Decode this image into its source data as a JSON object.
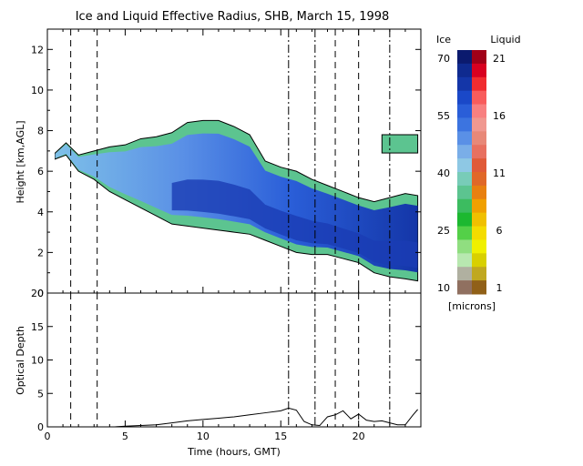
{
  "chart_data": [
    {
      "type": "heatmap",
      "title": "Ice and Liquid Effective Radius, SHB, March 15, 1998",
      "xlabel": "",
      "ylabel": "Height [km,AGL]",
      "xlim": [
        0,
        24
      ],
      "ylim": [
        0,
        13
      ],
      "yticks": [
        "0",
        "2",
        "4",
        "6",
        "8",
        "10",
        "12"
      ],
      "event_lines": [
        {
          "x": 1.5,
          "style": "dashed"
        },
        {
          "x": 3.2,
          "style": "dashed"
        },
        {
          "x": 15.5,
          "style": "dash-dot"
        },
        {
          "x": 17.2,
          "style": "dash-dot"
        },
        {
          "x": 18.5,
          "style": "dashed"
        },
        {
          "x": 20.0,
          "style": "dashed"
        },
        {
          "x": 22.0,
          "style": "dash-dot"
        }
      ],
      "cloud_top_km": [
        [
          0.5,
          6.9
        ],
        [
          1.2,
          7.4
        ],
        [
          2.0,
          6.8
        ],
        [
          3.0,
          7.0
        ],
        [
          4.0,
          7.2
        ],
        [
          5.0,
          7.3
        ],
        [
          6.0,
          7.6
        ],
        [
          7.0,
          7.7
        ],
        [
          8.0,
          7.9
        ],
        [
          9.0,
          8.4
        ],
        [
          10.0,
          8.5
        ],
        [
          11.0,
          8.5
        ],
        [
          12.0,
          8.2
        ],
        [
          13.0,
          7.8
        ],
        [
          14.0,
          6.5
        ],
        [
          15.0,
          6.2
        ],
        [
          16.0,
          6.0
        ],
        [
          17.0,
          5.6
        ],
        [
          18.0,
          5.3
        ],
        [
          19.0,
          5.0
        ],
        [
          20.0,
          4.7
        ],
        [
          21.0,
          4.5
        ],
        [
          22.0,
          4.7
        ],
        [
          23.0,
          4.9
        ],
        [
          23.8,
          4.8
        ]
      ],
      "cloud_base_km": [
        [
          0.5,
          6.6
        ],
        [
          1.2,
          6.8
        ],
        [
          2.0,
          6.0
        ],
        [
          3.0,
          5.6
        ],
        [
          4.0,
          5.0
        ],
        [
          5.0,
          4.6
        ],
        [
          6.0,
          4.2
        ],
        [
          7.0,
          3.8
        ],
        [
          8.0,
          3.4
        ],
        [
          9.0,
          3.3
        ],
        [
          10.0,
          3.2
        ],
        [
          11.0,
          3.1
        ],
        [
          12.0,
          3.0
        ],
        [
          13.0,
          2.9
        ],
        [
          14.0,
          2.6
        ],
        [
          15.0,
          2.3
        ],
        [
          16.0,
          2.0
        ],
        [
          17.0,
          1.9
        ],
        [
          18.0,
          1.9
        ],
        [
          19.0,
          1.7
        ],
        [
          20.0,
          1.5
        ],
        [
          21.0,
          1.0
        ],
        [
          22.0,
          0.8
        ],
        [
          23.0,
          0.7
        ],
        [
          23.8,
          0.6
        ]
      ],
      "upper_cloud_km": {
        "x": [
          21.5,
          23.8
        ],
        "base": 6.9,
        "top": 7.8
      },
      "colorbar": {
        "ice_label": "Ice",
        "liquid_label": "Liquid",
        "units": "[microns]",
        "ice_ticks": [
          "70",
          "55",
          "40",
          "25",
          "10"
        ],
        "liquid_ticks": [
          "21",
          "16",
          "11",
          "6",
          "1"
        ],
        "ice_colors": [
          "#0b1a6e",
          "#0f2a8f",
          "#1436a8",
          "#1a48c8",
          "#2a5ed8",
          "#3c74e0",
          "#5a90e6",
          "#7aaee8",
          "#8ec8e4",
          "#78ccb8",
          "#5cc490",
          "#3cbc60",
          "#1cb830",
          "#54d048",
          "#90de80",
          "#b8e8b0",
          "#b0b0a0",
          "#907060"
        ],
        "liquid_colors": [
          "#a00018",
          "#d80020",
          "#f02c30",
          "#f85c5c",
          "#f88080",
          "#f09890",
          "#e88878",
          "#e87060",
          "#e05a38",
          "#e06828",
          "#e88010",
          "#f0a000",
          "#f0c000",
          "#f4dc00",
          "#f0f000",
          "#d8d000",
          "#c0a820",
          "#906018"
        ]
      }
    },
    {
      "type": "line",
      "xlabel": "Time (hours, GMT)",
      "ylabel": "Optical Depth",
      "xlim": [
        0,
        24
      ],
      "ylim": [
        0,
        20
      ],
      "xticks": [
        "0",
        "5",
        "10",
        "15",
        "20"
      ],
      "yticks": [
        "0",
        "5",
        "10",
        "15",
        "20"
      ],
      "series": [
        {
          "x": [
            4.3,
            5,
            6,
            7,
            8,
            9,
            10,
            11,
            12,
            13,
            14,
            15,
            15.5,
            16,
            16.5,
            17,
            17.5,
            18,
            18.5,
            19,
            19.5,
            20,
            20.5,
            21,
            21.5,
            22,
            22.5,
            23,
            23.5,
            23.8
          ],
          "values": [
            0,
            0.1,
            0.2,
            0.3,
            0.6,
            0.9,
            1.1,
            1.3,
            1.5,
            1.8,
            2.1,
            2.4,
            2.8,
            2.5,
            0.8,
            0.3,
            0.2,
            1.5,
            1.8,
            2.4,
            1.2,
            1.9,
            1.0,
            0.8,
            0.9,
            0.6,
            0.3,
            0.3,
            1.8,
            2.6
          ]
        }
      ]
    }
  ]
}
